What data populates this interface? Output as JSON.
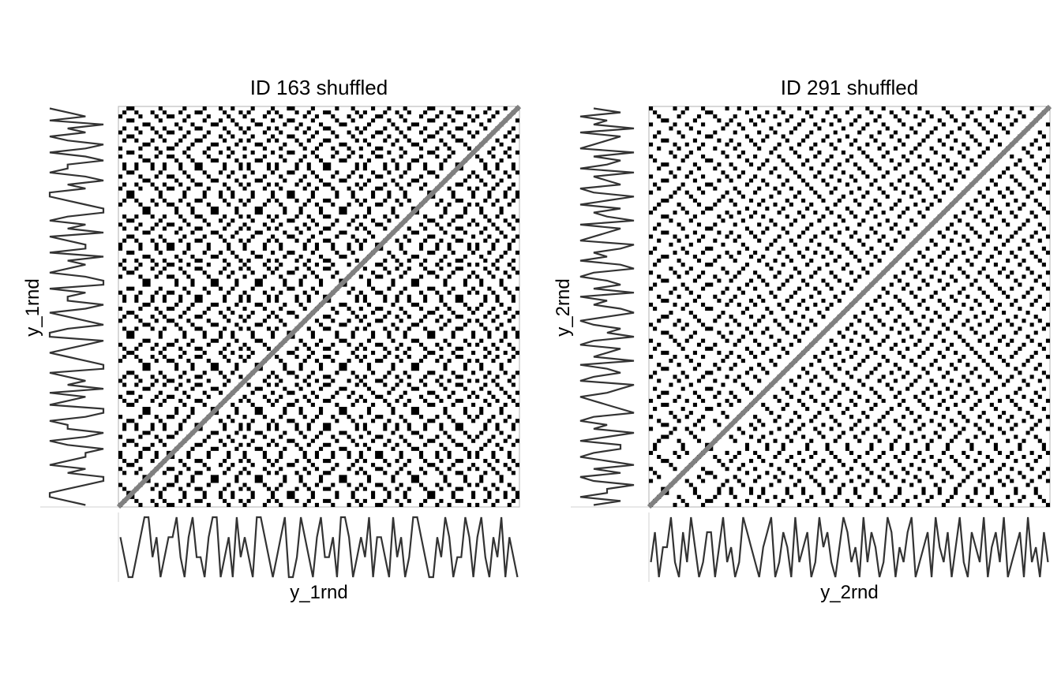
{
  "chart_data": [
    {
      "type": "heatmap",
      "title": "ID 163 shuffled",
      "xlabel": "y_1rnd",
      "ylabel": "y_1rnd",
      "n": 100,
      "line_of_identity": true,
      "states": [
        3,
        2,
        1,
        1,
        2,
        3,
        4,
        4,
        2,
        3,
        1,
        2,
        3,
        3,
        4,
        2,
        1,
        3,
        4,
        2,
        2,
        1,
        3,
        4,
        4,
        1,
        2,
        3,
        1,
        4,
        2,
        3,
        2,
        1,
        4,
        4,
        3,
        2,
        1,
        2,
        3,
        4,
        1,
        1,
        2,
        4,
        3,
        2,
        1,
        3,
        4,
        2,
        2,
        3,
        1,
        4,
        4,
        3,
        1,
        2,
        3,
        2,
        4,
        1,
        3,
        3,
        2,
        1,
        4,
        2,
        3,
        1,
        2,
        4,
        4,
        3,
        2,
        1,
        1,
        3,
        2,
        4,
        3,
        1,
        2,
        2,
        4,
        3,
        1,
        3,
        4,
        2,
        1,
        3,
        2,
        4,
        1,
        3,
        2,
        1
      ]
    },
    {
      "type": "heatmap",
      "title": "ID 291 shuffled",
      "xlabel": "y_2rnd",
      "ylabel": "y_2rnd",
      "n": 100,
      "line_of_identity": true,
      "states": [
        2,
        4,
        1,
        3,
        3,
        5,
        2,
        1,
        4,
        2,
        5,
        3,
        1,
        2,
        4,
        4,
        1,
        3,
        5,
        2,
        3,
        1,
        2,
        5,
        4,
        3,
        2,
        1,
        3,
        4,
        5,
        1,
        2,
        4,
        3,
        1,
        5,
        2,
        3,
        4,
        1,
        2,
        5,
        3,
        4,
        2,
        1,
        3,
        5,
        4,
        2,
        3,
        1,
        5,
        2,
        4,
        3,
        1,
        2,
        5,
        4,
        1,
        3,
        2,
        4,
        5,
        1,
        2,
        3,
        4,
        1,
        5,
        3,
        2,
        4,
        1,
        3,
        5,
        2,
        1,
        4,
        3,
        2,
        5,
        1,
        3,
        4,
        2,
        5,
        1,
        2,
        3,
        4,
        1,
        5,
        2,
        3,
        1,
        4,
        2
      ]
    }
  ]
}
